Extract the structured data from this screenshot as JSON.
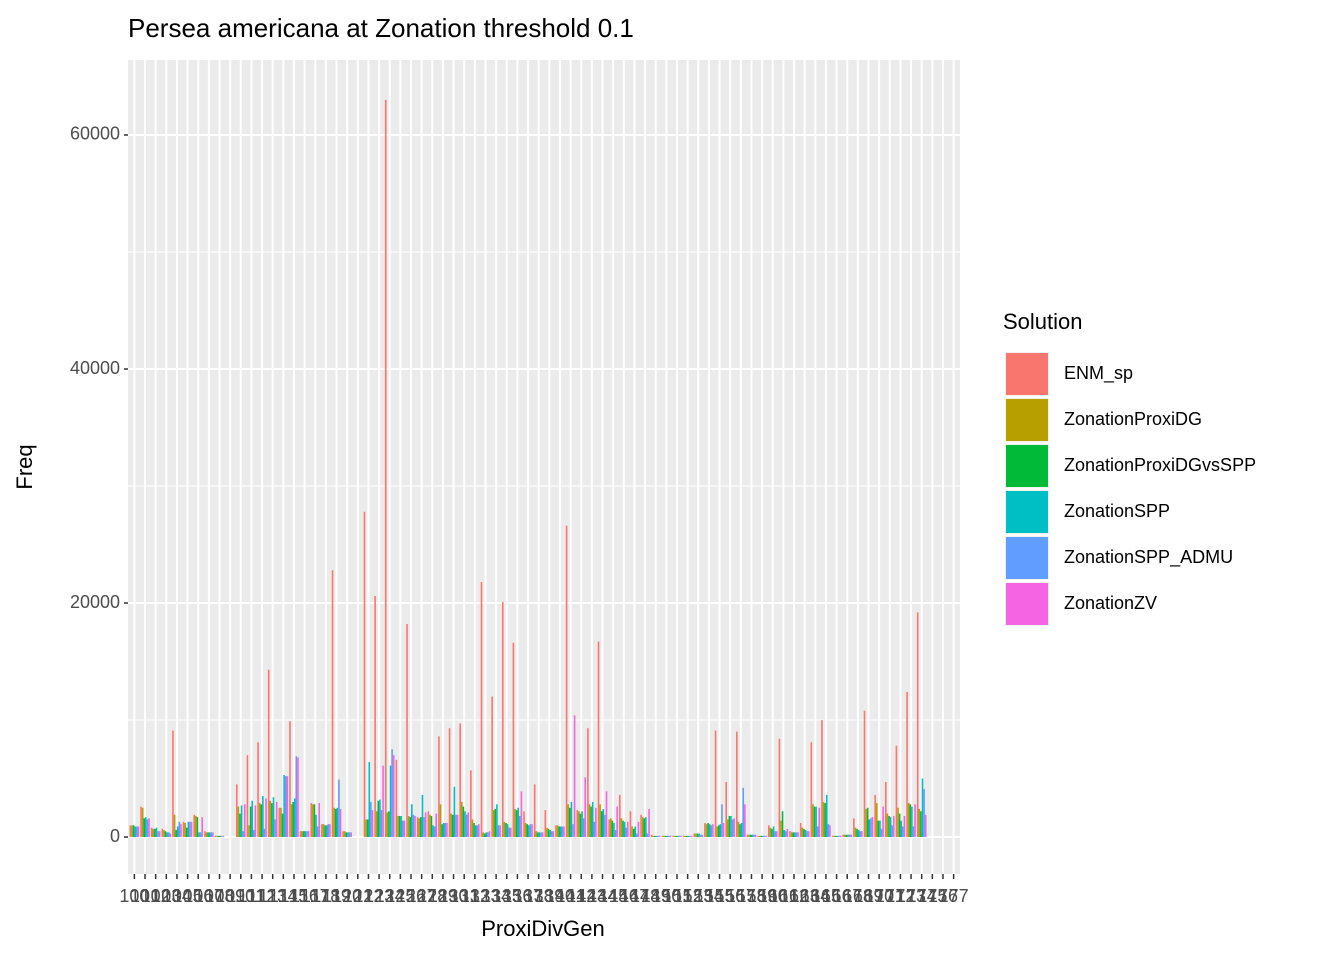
{
  "chart_data": {
    "type": "bar",
    "title": "Persea americana at Zonation threshold 0.1",
    "x_label": "ProxiDivGen",
    "y_label": "Freq",
    "legend_title": "Solution",
    "categories": [
      "100",
      "101",
      "102",
      "103",
      "104",
      "105",
      "106",
      "107",
      "108",
      "109",
      "110",
      "111",
      "112",
      "113",
      "114",
      "115",
      "116",
      "117",
      "118",
      "119",
      "120",
      "121",
      "122",
      "123",
      "124",
      "125",
      "126",
      "127",
      "128",
      "129",
      "130",
      "131",
      "132",
      "133",
      "134",
      "135",
      "136",
      "137",
      "138",
      "139",
      "140",
      "141",
      "142",
      "143",
      "144",
      "145",
      "146",
      "147",
      "148",
      "149",
      "150",
      "151",
      "152",
      "153",
      "154",
      "155",
      "156",
      "157",
      "158",
      "159",
      "160",
      "161",
      "162",
      "163",
      "164",
      "165",
      "166",
      "167",
      "168",
      "169",
      "170",
      "171",
      "172",
      "173",
      "174",
      "175",
      "176",
      "177"
    ],
    "series": [
      {
        "name": "ENM_sp",
        "color": "#F8766D",
        "values": [
          1000,
          2600,
          800,
          700,
          9100,
          1300,
          1900,
          500,
          100,
          0,
          4500,
          7000,
          8100,
          14300,
          2500,
          9900,
          500,
          2900,
          1100,
          22800,
          500,
          0,
          27800,
          20600,
          63000,
          6600,
          18200,
          1700,
          2200,
          8600,
          9300,
          9700,
          5700,
          21800,
          12000,
          20100,
          16600,
          2200,
          4500,
          2300,
          1000,
          26600,
          2300,
          9300,
          16700,
          1500,
          3600,
          2200,
          1900,
          200,
          100,
          100,
          100,
          300,
          1200,
          9100,
          4700,
          9000,
          200,
          100,
          1000,
          8400,
          500,
          1200,
          8100,
          10000,
          100,
          200,
          1600,
          10800,
          3600,
          4700,
          7800,
          12400,
          19200,
          0,
          0,
          0
        ]
      },
      {
        "name": "ZonationProxiDG",
        "color": "#B79F00",
        "values": [
          1000,
          2500,
          700,
          600,
          1900,
          1200,
          1800,
          400,
          100,
          0,
          2600,
          1000,
          2900,
          3100,
          2500,
          2800,
          500,
          2800,
          1100,
          2500,
          500,
          0,
          1500,
          2200,
          2100,
          1800,
          1800,
          1600,
          1900,
          2800,
          2000,
          3000,
          1500,
          400,
          2300,
          1300,
          2400,
          1200,
          500,
          800,
          1000,
          2800,
          2200,
          2800,
          2800,
          1600,
          1600,
          900,
          1700,
          100,
          100,
          100,
          100,
          300,
          1100,
          900,
          1500,
          1300,
          200,
          100,
          800,
          1400,
          400,
          800,
          2800,
          3000,
          100,
          200,
          800,
          2400,
          2900,
          2000,
          2500,
          2900,
          2400,
          0,
          0,
          0
        ]
      },
      {
        "name": "ZonationProxiDGvsSPP",
        "color": "#00BA38",
        "values": [
          1000,
          1600,
          700,
          500,
          600,
          800,
          1700,
          400,
          100,
          0,
          2000,
          2600,
          2800,
          2900,
          2000,
          3000,
          500,
          2800,
          1000,
          2400,
          400,
          0,
          1500,
          3100,
          2200,
          1800,
          1700,
          1700,
          1800,
          1100,
          1900,
          2600,
          1200,
          300,
          2400,
          1200,
          2300,
          1100,
          400,
          700,
          900,
          2500,
          2000,
          2600,
          2200,
          1400,
          1400,
          700,
          1600,
          100,
          100,
          100,
          100,
          300,
          1200,
          1000,
          1800,
          1100,
          200,
          100,
          700,
          2200,
          400,
          700,
          2600,
          2900,
          100,
          200,
          700,
          2500,
          1400,
          1800,
          2000,
          2800,
          2200,
          0,
          0,
          0
        ]
      },
      {
        "name": "ZonationSPP",
        "color": "#00BFC4",
        "values": [
          900,
          1700,
          800,
          400,
          900,
          1300,
          400,
          400,
          100,
          0,
          2700,
          3100,
          3500,
          3400,
          5300,
          3300,
          500,
          1900,
          1000,
          2500,
          400,
          0,
          6400,
          3200,
          6100,
          1800,
          2800,
          3600,
          1000,
          1200,
          4300,
          2200,
          1000,
          400,
          2800,
          1100,
          2500,
          1000,
          400,
          600,
          900,
          3000,
          2200,
          3000,
          2400,
          1200,
          1300,
          900,
          1700,
          100,
          100,
          100,
          100,
          300,
          1100,
          1100,
          1800,
          1200,
          200,
          100,
          900,
          600,
          400,
          600,
          2600,
          3600,
          100,
          200,
          600,
          1500,
          1400,
          1700,
          1400,
          2600,
          5000,
          0,
          0,
          0
        ]
      },
      {
        "name": "ZonationSPP_ADMU",
        "color": "#619CFF",
        "values": [
          900,
          1500,
          500,
          400,
          1300,
          1300,
          400,
          400,
          100,
          0,
          500,
          600,
          700,
          1500,
          5200,
          6900,
          500,
          900,
          1100,
          4900,
          400,
          0,
          3000,
          2300,
          7500,
          1400,
          1900,
          1700,
          900,
          1200,
          1900,
          1900,
          1000,
          400,
          1000,
          800,
          1800,
          1100,
          400,
          500,
          900,
          1100,
          1600,
          1300,
          1900,
          600,
          800,
          300,
          300,
          100,
          100,
          100,
          100,
          200,
          1000,
          2800,
          1500,
          4200,
          200,
          100,
          500,
          500,
          400,
          500,
          900,
          1100,
          100,
          200,
          500,
          1600,
          700,
          1000,
          900,
          900,
          4100,
          0,
          0,
          0
        ]
      },
      {
        "name": "ZonationZV",
        "color": "#F564E3",
        "values": [
          900,
          1600,
          500,
          300,
          1100,
          1300,
          1700,
          400,
          100,
          0,
          2800,
          2700,
          3300,
          3000,
          5200,
          6800,
          500,
          2900,
          1100,
          2400,
          400,
          0,
          2300,
          6100,
          7000,
          1400,
          1800,
          2100,
          2000,
          1200,
          1900,
          2100,
          1100,
          500,
          1000,
          800,
          3900,
          1100,
          400,
          500,
          900,
          10400,
          5100,
          2500,
          3900,
          2600,
          1300,
          1300,
          2400,
          100,
          100,
          100,
          100,
          200,
          1100,
          1200,
          1600,
          2800,
          200,
          100,
          500,
          700,
          400,
          500,
          2500,
          1000,
          100,
          200,
          500,
          1700,
          2600,
          1800,
          1800,
          2800,
          1900,
          0,
          0,
          0
        ]
      }
    ],
    "ylim": [
      -3160,
      66410
    ],
    "yticks": [
      0,
      20000,
      40000,
      60000
    ],
    "grid": true
  }
}
